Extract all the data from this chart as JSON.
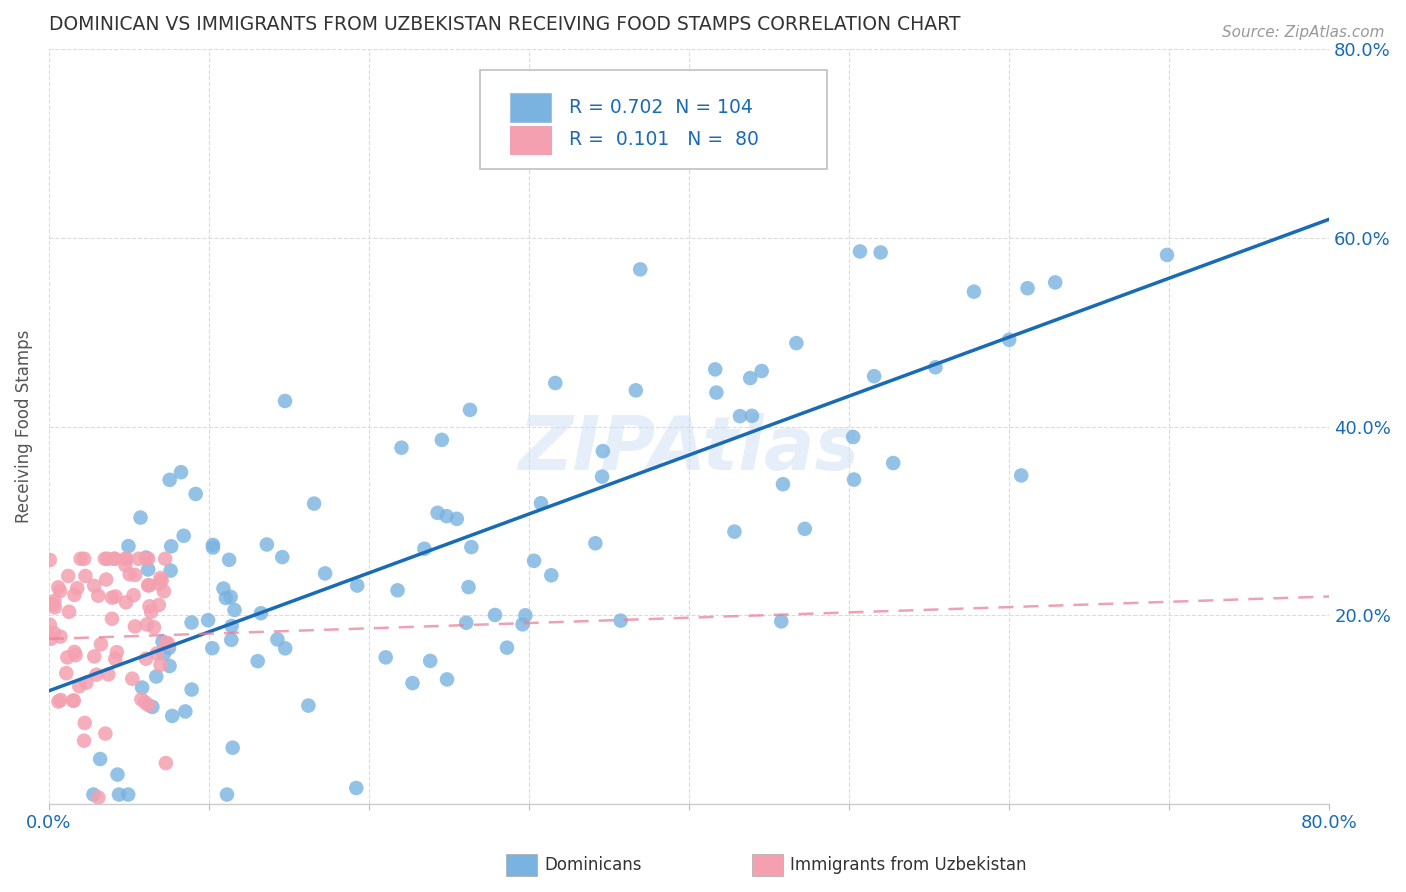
{
  "title": "DOMINICAN VS IMMIGRANTS FROM UZBEKISTAN RECEIVING FOOD STAMPS CORRELATION CHART",
  "source": "Source: ZipAtlas.com",
  "ylabel": "Receiving Food Stamps",
  "xlim": [
    0,
    0.8
  ],
  "ylim": [
    0,
    0.8
  ],
  "dominican_color": "#7ab3e0",
  "uzbek_color": "#f4a0b0",
  "dominican_line_color": "#1a6bb5",
  "uzbek_line_color": "#e8829a",
  "dominican_R": 0.702,
  "dominican_N": 104,
  "uzbek_R": 0.101,
  "uzbek_N": 80,
  "watermark": "ZIPAtlas",
  "background_color": "#ffffff",
  "grid_color": "#d8d8d8",
  "title_color": "#333333",
  "legend_R_color": "#1a6bb5",
  "axis_label_color": "#1a6bb5",
  "dom_line_start_y": 0.12,
  "dom_line_end_y": 0.62,
  "uzb_line_start_y": 0.175,
  "uzb_line_end_y": 0.22
}
